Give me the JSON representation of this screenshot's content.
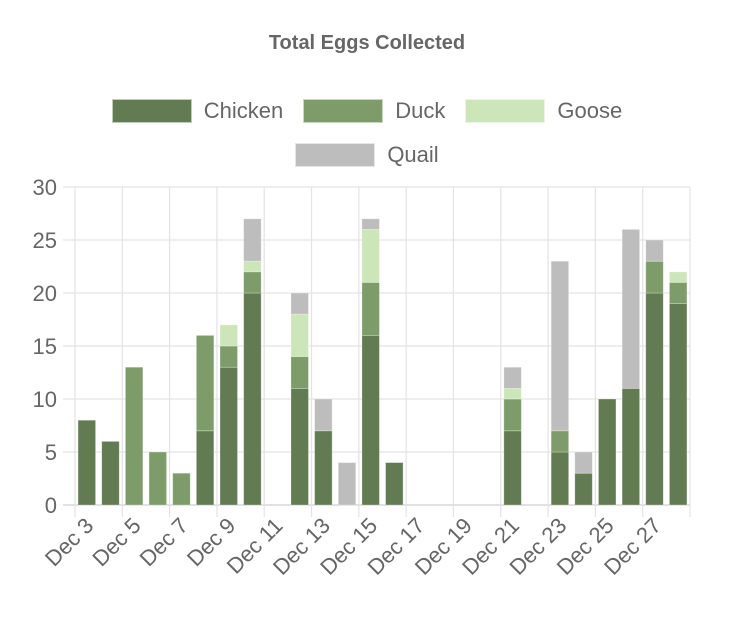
{
  "chart_data": {
    "type": "bar",
    "stacked": true,
    "title": "Total Eggs Collected",
    "xlabel": "",
    "ylabel": "",
    "ylim": [
      0,
      30
    ],
    "yticks": [
      0,
      5,
      10,
      15,
      20,
      25,
      30
    ],
    "grid": true,
    "legend_position": "top",
    "categories": [
      "Dec 3",
      "Dec 4",
      "Dec 5",
      "Dec 6",
      "Dec 7",
      "Dec 8",
      "Dec 9",
      "Dec 10",
      "Dec 11",
      "Dec 12",
      "Dec 13",
      "Dec 14",
      "Dec 15",
      "Dec 16",
      "Dec 17",
      "Dec 18",
      "Dec 19",
      "Dec 20",
      "Dec 21",
      "Dec 22",
      "Dec 23",
      "Dec 24",
      "Dec 25",
      "Dec 26",
      "Dec 27",
      "Dec 28"
    ],
    "xtick_labels": [
      "Dec 3",
      "Dec 5",
      "Dec 7",
      "Dec 9",
      "Dec 11",
      "Dec 13",
      "Dec 15",
      "Dec 17",
      "Dec 19",
      "Dec 21",
      "Dec 23",
      "Dec 25",
      "Dec 27"
    ],
    "series": [
      {
        "name": "Chicken",
        "color": "#627b53",
        "values": [
          8,
          6,
          0,
          0,
          0,
          7,
          13,
          20,
          0,
          11,
          7,
          0,
          16,
          4,
          0,
          0,
          0,
          0,
          7,
          0,
          5,
          3,
          10,
          11,
          20,
          19
        ]
      },
      {
        "name": "Duck",
        "color": "#7d9c69",
        "values": [
          0,
          0,
          13,
          5,
          3,
          9,
          2,
          2,
          0,
          3,
          0,
          0,
          5,
          0,
          0,
          0,
          0,
          0,
          3,
          0,
          2,
          0,
          0,
          0,
          3,
          2
        ]
      },
      {
        "name": "Goose",
        "color": "#cde6b9",
        "values": [
          0,
          0,
          0,
          0,
          0,
          0,
          2,
          1,
          0,
          4,
          0,
          0,
          5,
          0,
          0,
          0,
          0,
          0,
          1,
          0,
          0,
          0,
          0,
          0,
          0,
          1
        ]
      },
      {
        "name": "Quail",
        "color": "#bdbdbd",
        "values": [
          0,
          0,
          0,
          0,
          0,
          0,
          0,
          4,
          0,
          2,
          3,
          4,
          1,
          0,
          0,
          0,
          0,
          0,
          2,
          0,
          16,
          2,
          0,
          15,
          2,
          0
        ]
      }
    ]
  },
  "legend": {
    "row1": [
      {
        "label": "Chicken",
        "color": "#627b53"
      },
      {
        "label": "Duck",
        "color": "#7d9c69"
      },
      {
        "label": "Goose",
        "color": "#cde6b9"
      }
    ],
    "row2": [
      {
        "label": "Quail",
        "color": "#bdbdbd"
      }
    ]
  }
}
